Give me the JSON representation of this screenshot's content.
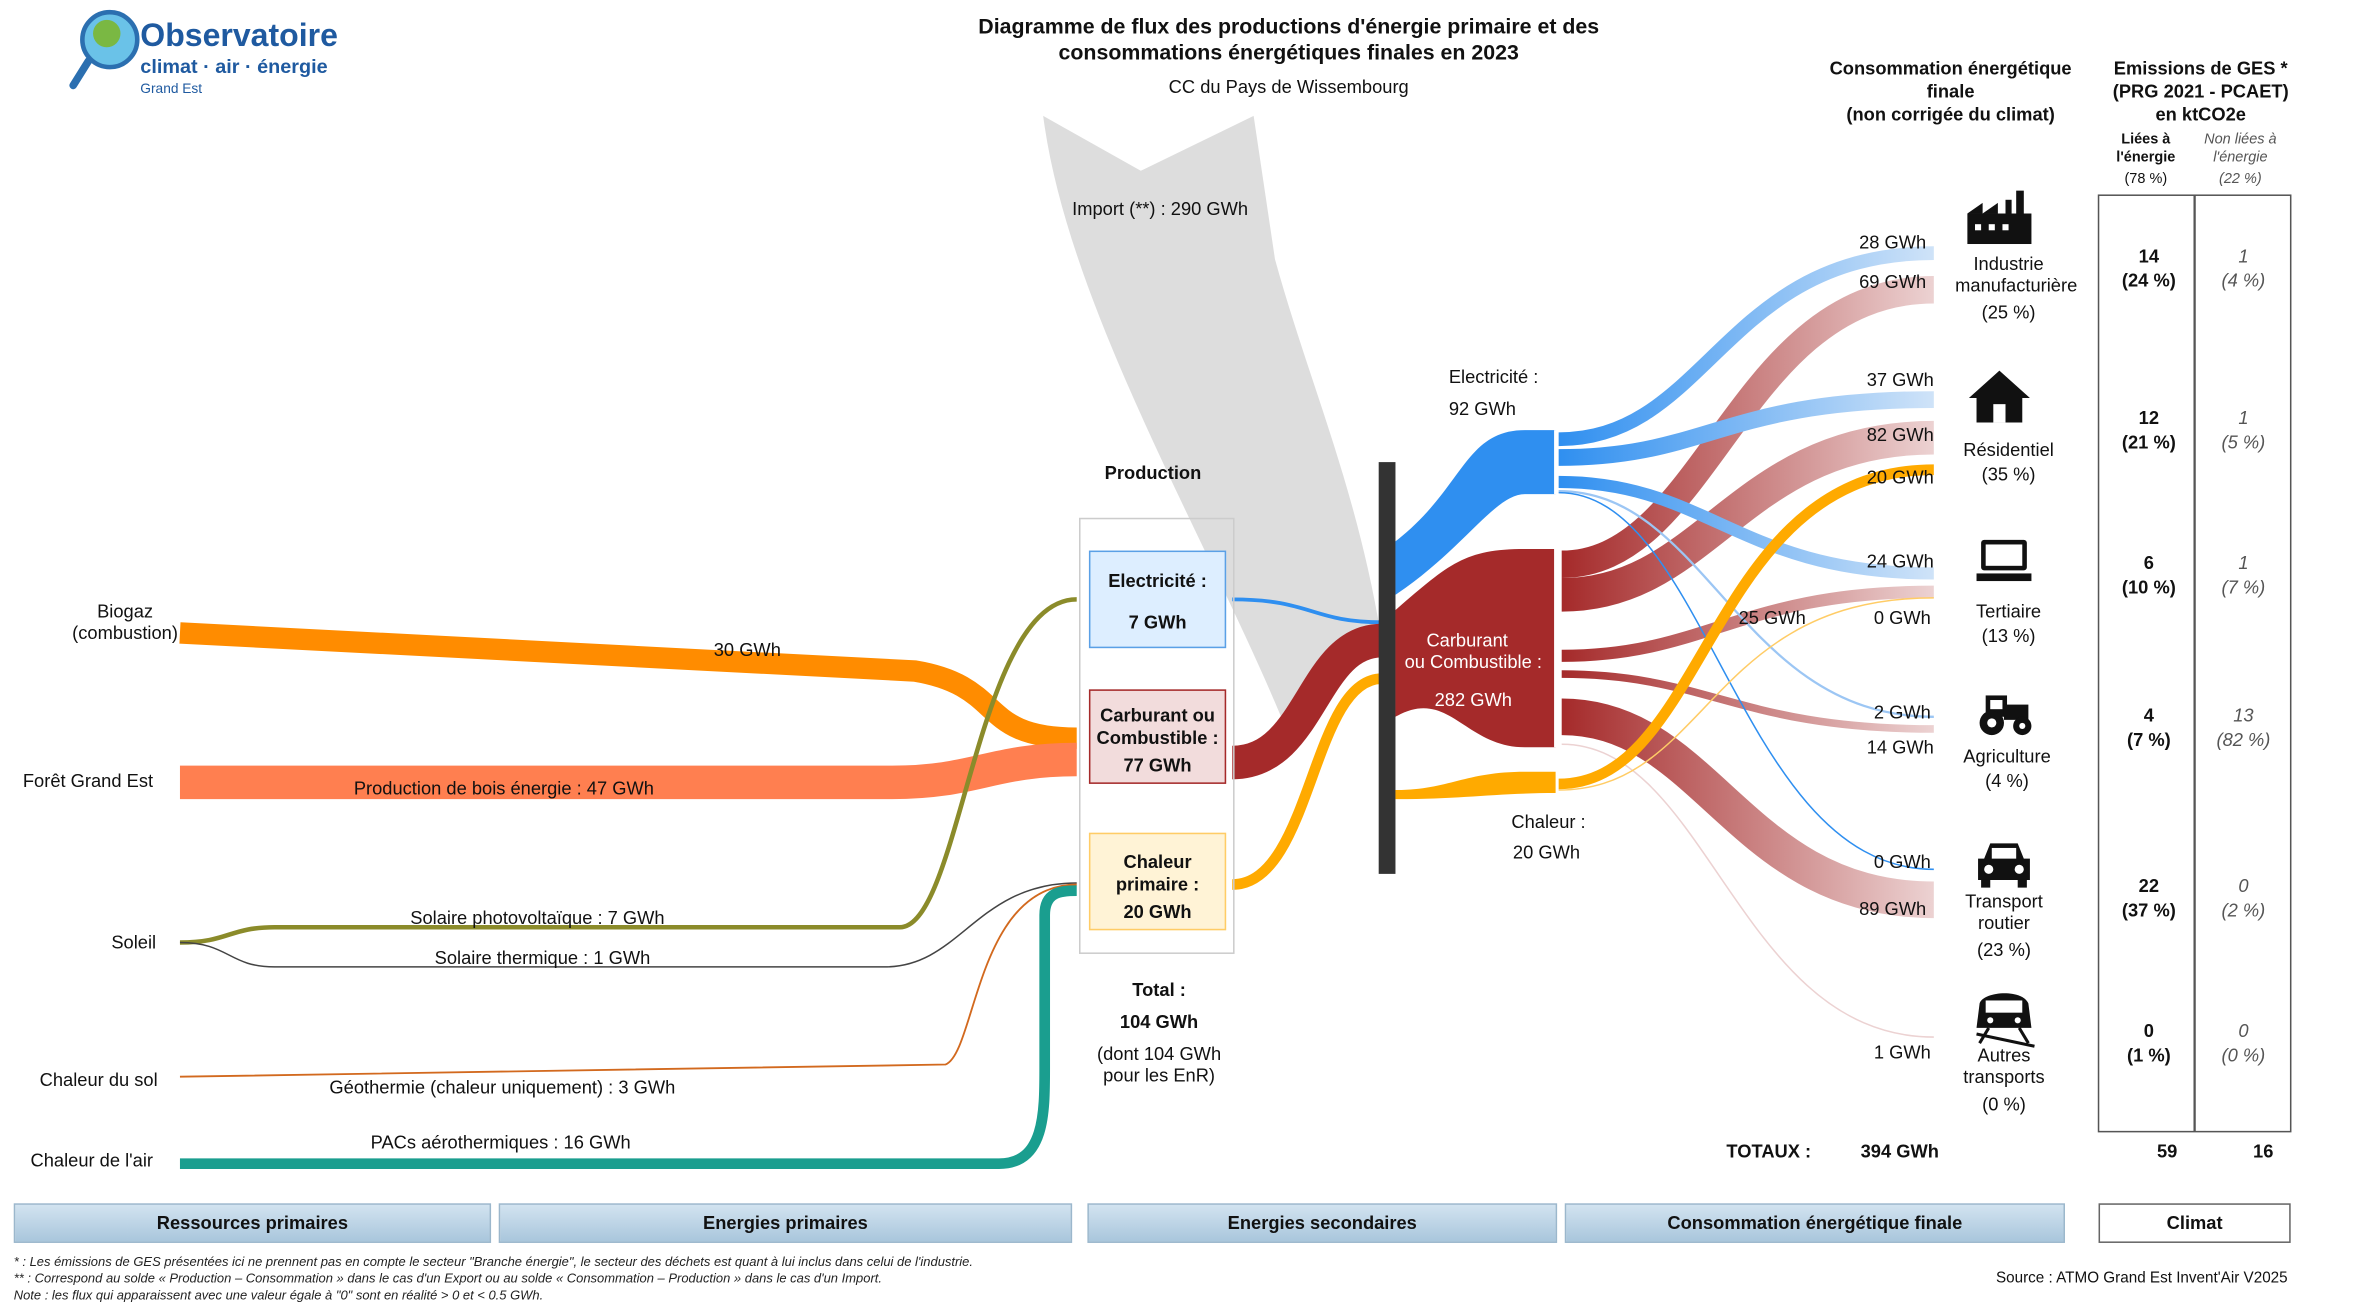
{
  "header": {
    "logo_main": "Observatoire",
    "logo_sub": "climat · air · énergie",
    "logo_region": "Grand Est",
    "title_line1": "Diagramme de flux des productions d'énergie primaire et des",
    "title_line2": "consommations énergétiques finales en 2023",
    "subtitle": "CC du Pays de Wissembourg"
  },
  "import": {
    "label": "Import (**) :  290 GWh",
    "value_gwh": 290
  },
  "production": {
    "heading": "Production",
    "electricite": {
      "line1": "Electricité :",
      "line2": "7 GWh",
      "value_gwh": 7
    },
    "carburant": {
      "line1": "Carburant ou",
      "line2": "Combustible :",
      "line3": "77 GWh",
      "value_gwh": 77
    },
    "chaleur": {
      "line1": "Chaleur",
      "line2": "primaire :",
      "line3": "20 GWh",
      "value_gwh": 20
    },
    "total_label": "Total :",
    "total_value": "104 GWh",
    "enr_line1": "(dont  104 GWh",
    "enr_line2": "pour les EnR)"
  },
  "primary_resources": {
    "biogaz": {
      "line1": "Biogaz",
      "line2": "(combustion)",
      "flow_label": "30 GWh",
      "value_gwh": 30
    },
    "foret": {
      "label": "Forêt Grand Est",
      "flow_label": "Production de bois énergie :  47 GWh",
      "value_gwh": 47
    },
    "soleil": {
      "label": "Soleil",
      "pv_label": "Solaire photovoltaïque :  7 GWh",
      "thermique_label": "Solaire thermique :  1 GWh"
    },
    "sol": {
      "label": "Chaleur du sol",
      "flow_label": "Géothermie (chaleur uniquement) :  3 GWh",
      "value_gwh": 3
    },
    "air": {
      "label": "Chaleur de l'air",
      "flow_label": "PACs aérothermiques :  16 GWh",
      "value_gwh": 16
    }
  },
  "secondary": {
    "electricite_line1": "Electricité :",
    "electricite_line2": "92 GWh",
    "carburant_line1": "Carburant",
    "carburant_line2": "ou Combustible :",
    "carburant_line3": "282 GWh",
    "chaleur_line1": "Chaleur :",
    "chaleur_line2": "20 GWh"
  },
  "flow_values": {
    "ind_elec": "28 GWh",
    "ind_comb": "69 GWh",
    "res_elec": "37 GWh",
    "res_comb": "82 GWh",
    "res_chal": "20 GWh",
    "ter_elec": "24 GWh",
    "ter_chal": "0 GWh",
    "ter_comb": "25 GWh",
    "agr_elec": "2 GWh",
    "agr_comb": "14 GWh",
    "tra_elec": "0 GWh",
    "tra_comb": "89 GWh",
    "aut": "1 GWh"
  },
  "consumption": {
    "heading_line1": "Consommation énergétique",
    "heading_line2": "finale",
    "heading_line3": "(non corrigée du climat)",
    "sectors": [
      {
        "icon": "factory-icon",
        "line1": "Industrie",
        "line2": "manufacturière",
        "share": "(25 %)"
      },
      {
        "icon": "house-icon",
        "line1": "Résidentiel",
        "line2": "",
        "share": "(35 %)"
      },
      {
        "icon": "laptop-icon",
        "line1": "Tertiaire",
        "line2": "",
        "share": "(13 %)"
      },
      {
        "icon": "tractor-icon",
        "line1": "Agriculture",
        "line2": "",
        "share": "(4 %)"
      },
      {
        "icon": "car-icon",
        "line1": "Transport",
        "line2": "routier",
        "share": "(23 %)"
      },
      {
        "icon": "train-icon",
        "line1": "Autres",
        "line2": "transports",
        "share": "(0 %)"
      }
    ],
    "totals_label": "TOTAUX :",
    "totals_value": "394 GWh"
  },
  "ghg": {
    "heading_line1": "Emissions de GES *",
    "heading_line2": "(PRG 2021 - PCAET)",
    "heading_line3": "en ktCO2e",
    "col1_line1": "Liées à",
    "col1_line2": "l'énergie",
    "col1_share": "(78 %)",
    "col2_line1": "Non liées à",
    "col2_line2": "l'énergie",
    "col2_share": "(22 %)",
    "rows": [
      {
        "energy": "14",
        "energy_share": "(24 %)",
        "non_energy": "1",
        "non_energy_share": "(4 %)"
      },
      {
        "energy": "12",
        "energy_share": "(21 %)",
        "non_energy": "1",
        "non_energy_share": "(5 %)"
      },
      {
        "energy": "6",
        "energy_share": "(10 %)",
        "non_energy": "1",
        "non_energy_share": "(7 %)"
      },
      {
        "energy": "4",
        "energy_share": "(7 %)",
        "non_energy": "13",
        "non_energy_share": "(82 %)"
      },
      {
        "energy": "22",
        "energy_share": "(37 %)",
        "non_energy": "0",
        "non_energy_share": "(2 %)"
      },
      {
        "energy": "0",
        "energy_share": "(1 %)",
        "non_energy": "0",
        "non_energy_share": "(0 %)"
      }
    ],
    "total_energy": "59",
    "total_non_energy": "16"
  },
  "bands": {
    "ressources": "Ressources primaires",
    "energies_primaires": "Energies primaires",
    "energies_secondaires": "Energies secondaires",
    "consommation": "Consommation énergétique finale",
    "climat": "Climat"
  },
  "footnotes": {
    "note1": "* : Les émissions de GES présentées ici ne prennent pas en compte le secteur \"Branche énergie\", le secteur des déchets est quant à lui inclus dans celui de l'industrie.",
    "note2": "** : Correspond au solde « Production – Consommation » dans le cas d'un Export ou au solde « Consommation – Production » dans le cas d'un Import.",
    "note3": "Note : les flux qui apparaissent avec une valeur égale à \"0\" sont en réalité > 0 et < 0.5 GWh.",
    "source": "Source : ATMO Grand Est Invent'Air V2025"
  },
  "colors": {
    "electricity": "#2f8ff0",
    "fuel": "#a52a2a",
    "heat": "#ffaa00",
    "biogas": "#ff8c00",
    "wood": "#ff7f50",
    "solar": "#8b8b2a",
    "geothermal": "#d2691e",
    "air_heat": "#1a9e8f",
    "import": "#d9d9d9",
    "node_bar": "#333333"
  }
}
